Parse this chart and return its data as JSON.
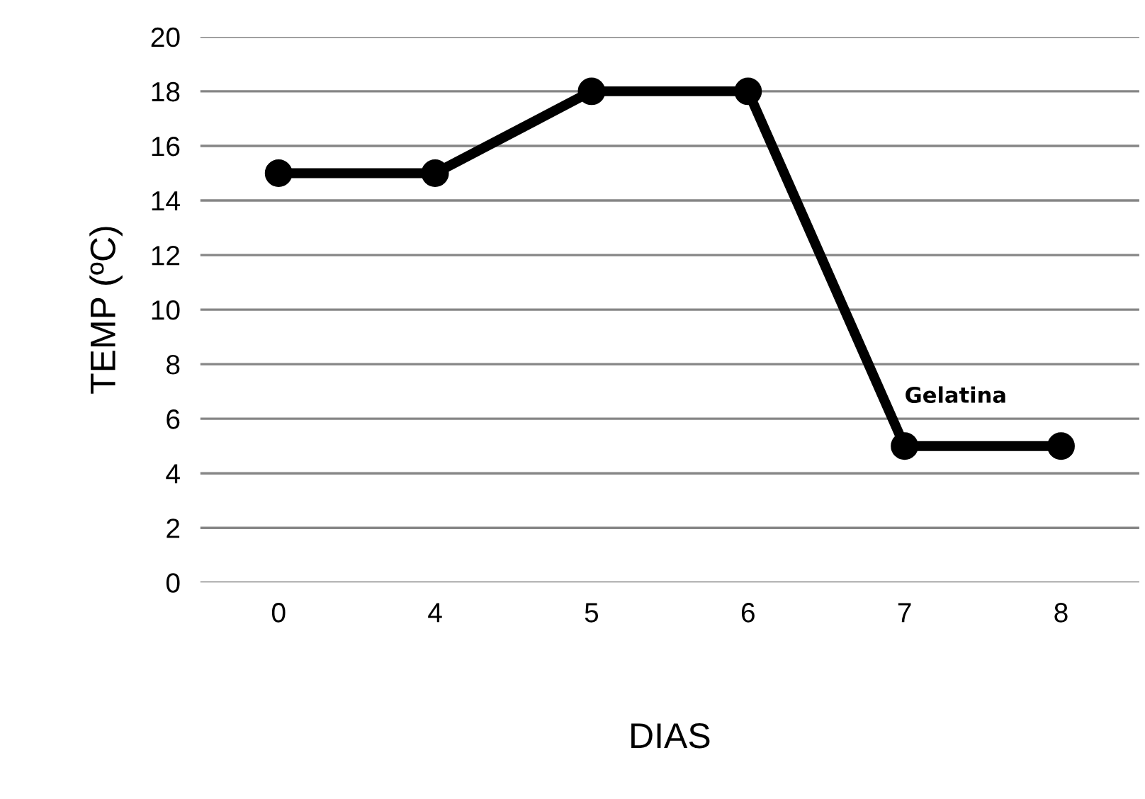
{
  "chart_data": {
    "type": "line",
    "xlabel": "DIAS",
    "ylabel": "TEMP (ºC)",
    "categories": [
      "0",
      "4",
      "5",
      "6",
      "7",
      "8"
    ],
    "series": [
      {
        "color": "#000000",
        "values": [
          15,
          15,
          18,
          18,
          5,
          5
        ]
      }
    ],
    "ylim": [
      0,
      20
    ],
    "yticks": [
      0,
      2,
      4,
      6,
      8,
      10,
      12,
      14,
      16,
      18,
      20
    ],
    "grid": "y",
    "marker": "circle",
    "line_style": "solid",
    "legend": false,
    "annotations": [
      {
        "text": "Gelatina",
        "x": "7",
        "y": 5
      }
    ]
  }
}
